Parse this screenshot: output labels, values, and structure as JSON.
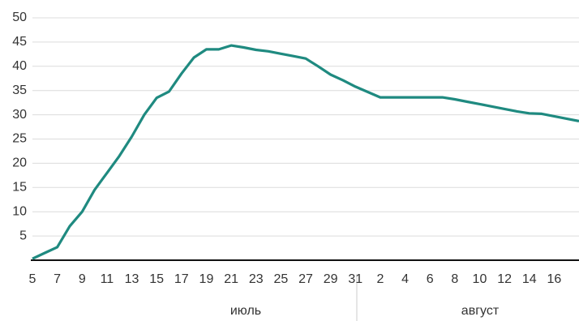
{
  "chart_data": {
    "type": "line",
    "categories": [
      "5",
      null,
      "7",
      null,
      "9",
      null,
      "11",
      null,
      "13",
      null,
      "15",
      null,
      "17",
      null,
      "19",
      null,
      "21",
      null,
      "23",
      null,
      "25",
      null,
      "27",
      null,
      "29",
      null,
      "31",
      null,
      "2",
      null,
      "4",
      null,
      "6",
      null,
      "8",
      null,
      "10",
      null,
      "12",
      null,
      "14",
      null,
      "16",
      null,
      null
    ],
    "series": [
      {
        "color": "#1f8a80",
        "values": [
          0.3,
          1.5,
          2.7,
          7,
          10,
          14.5,
          18,
          21.5,
          25.5,
          30,
          33.5,
          34.8,
          38.5,
          41.8,
          43.5,
          43.5,
          44.3,
          43.9,
          43.4,
          43.1,
          42.6,
          42.1,
          41.6,
          40,
          38.3,
          37.1,
          35.8,
          34.7,
          33.6,
          33.6,
          33.6,
          33.6,
          33.6,
          33.6,
          33.2,
          32.7,
          32.2,
          31.7,
          31.2,
          30.7,
          30.3,
          30.2,
          29.7,
          29.2,
          28.7
        ]
      }
    ],
    "month_labels": [
      "июль",
      "август"
    ],
    "ylim": [
      0,
      50
    ],
    "yticks": [
      5,
      10,
      15,
      20,
      25,
      30,
      35,
      40,
      45,
      50
    ],
    "grid": true
  }
}
